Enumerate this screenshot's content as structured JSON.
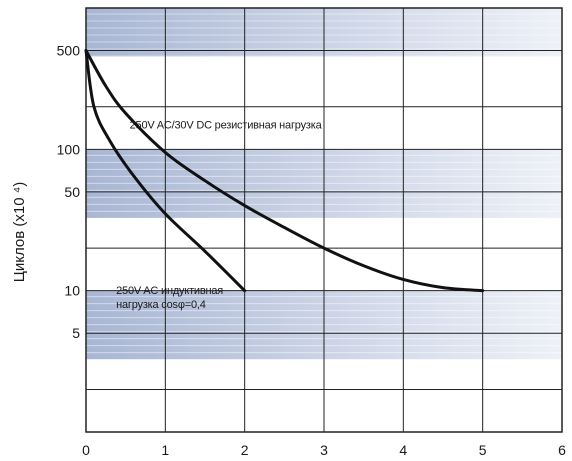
{
  "chart_data": {
    "type": "line",
    "title": "",
    "xlabel": "",
    "ylabel": "Циклов (x10 ⁴)",
    "y_scale": "log",
    "xlim": [
      0,
      6
    ],
    "ylim": [
      1,
      1000
    ],
    "x_ticks": [
      "0",
      "1",
      "2",
      "3",
      "4",
      "5",
      "6"
    ],
    "y_ticks": [
      {
        "value": 500,
        "label": "500"
      },
      {
        "value": 100,
        "label": "100"
      },
      {
        "value": 50,
        "label": "50"
      },
      {
        "value": 10,
        "label": "10"
      },
      {
        "value": 5,
        "label": "5"
      }
    ],
    "grid": true,
    "series": [
      {
        "name": "250V AC/30V DC резистивная нагрузка",
        "color": "#111111",
        "x": [
          0,
          0.25,
          0.5,
          1.0,
          1.5,
          2.0,
          2.5,
          3.0,
          3.5,
          4.0,
          4.5,
          5.0
        ],
        "y": [
          500,
          280,
          180,
          95,
          60,
          40,
          28,
          20,
          15,
          12,
          10.5,
          10
        ]
      },
      {
        "name": "250V AC индуктивная нагрузка cosφ=0,4",
        "color": "#111111",
        "x": [
          0,
          0.1,
          0.3,
          0.6,
          1.0,
          1.5,
          2.0
        ],
        "y": [
          500,
          200,
          115,
          65,
          35,
          19,
          10
        ]
      }
    ],
    "annotations": [
      {
        "lines": [
          "250V AC/30V DC резистивная нагрузка"
        ],
        "x": 0.55,
        "y": 140
      },
      {
        "lines": [
          "250V AC индуктивная",
          "нагрузка cosφ=0,4"
        ],
        "x": 0.38,
        "y": 9.5
      }
    ],
    "band_colors": {
      "dark": "#a8b6d4",
      "light": "#eef1f8"
    }
  }
}
